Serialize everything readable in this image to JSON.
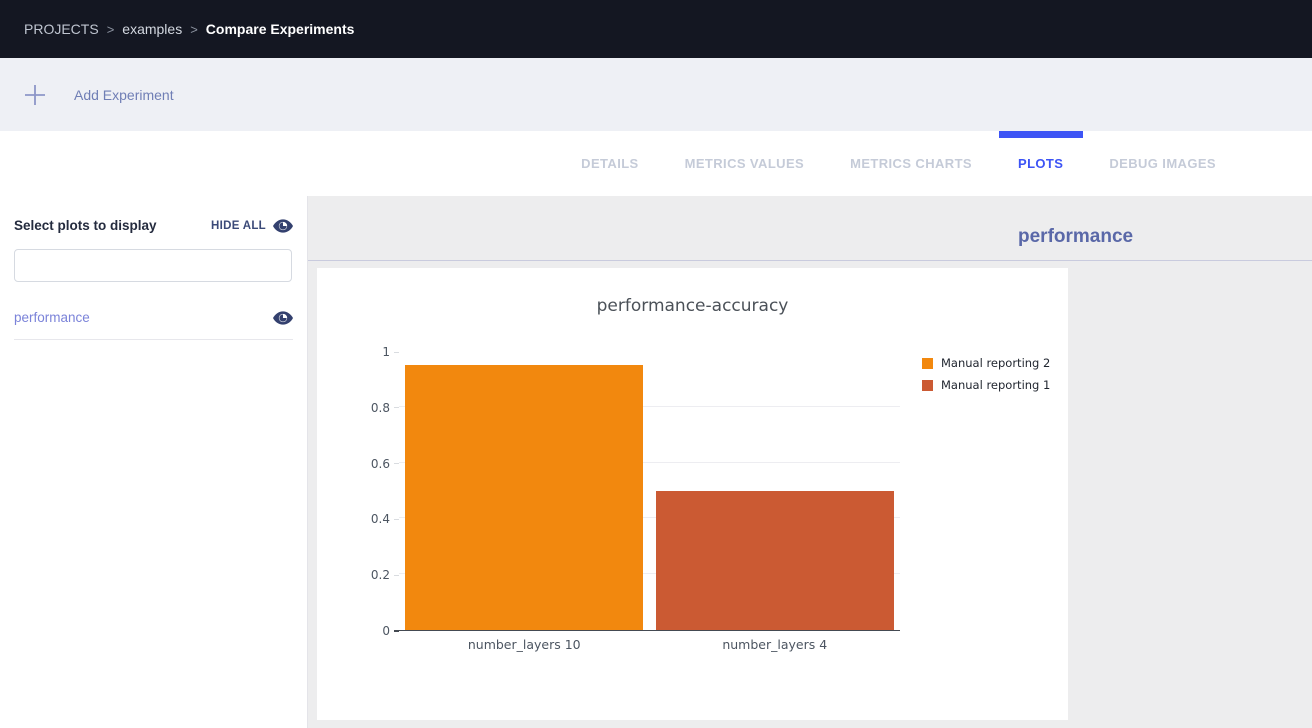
{
  "app": {
    "accent_blue": "#3d54f5",
    "dark_header_bg": "#141722",
    "toolbar_bg": "#eef0f5",
    "main_bg": "#ededee"
  },
  "breadcrumb": {
    "separator": ">",
    "items": [
      {
        "label": "PROJECTS",
        "style": "root"
      },
      {
        "label": "examples",
        "style": "mid"
      },
      {
        "label": "Compare Experiments",
        "style": "last"
      }
    ]
  },
  "toolbar": {
    "plus_icon": "plus",
    "add_experiment_label": "Add Experiment"
  },
  "tabs": [
    {
      "label": "DETAILS",
      "active": false
    },
    {
      "label": "METRICS VALUES",
      "active": false
    },
    {
      "label": "METRICS CHARTS",
      "active": false
    },
    {
      "label": "PLOTS",
      "active": true
    },
    {
      "label": "DEBUG IMAGES",
      "active": false
    }
  ],
  "sidebar": {
    "title": "Select plots to display",
    "hide_all_label": "HIDE ALL",
    "search_value": "",
    "search_placeholder": "",
    "items": [
      {
        "label": "performance",
        "visible": true
      }
    ]
  },
  "main": {
    "group_title": "performance"
  },
  "chart_data": {
    "type": "bar",
    "title": "performance-accuracy",
    "categories": [
      "number_layers 10",
      "number_layers 4"
    ],
    "series": [
      {
        "name": "Manual reporting 2",
        "color": "#F2880E",
        "values": [
          0.95,
          null
        ]
      },
      {
        "name": "Manual reporting 1",
        "color": "#CB5A33",
        "values": [
          null,
          0.5
        ]
      }
    ],
    "bars": [
      {
        "category": "number_layers 10",
        "value": 0.95,
        "series": "Manual reporting 2",
        "color": "#F2880E"
      },
      {
        "category": "number_layers 4",
        "value": 0.5,
        "series": "Manual reporting 1",
        "color": "#CB5A33"
      }
    ],
    "ylim": [
      0,
      1
    ],
    "yticks": [
      0,
      0.2,
      0.4,
      0.6,
      0.8,
      1
    ],
    "grid": true,
    "gridline_values": [
      0.2,
      0.4,
      0.6,
      0.8
    ],
    "legend_position": "right"
  }
}
